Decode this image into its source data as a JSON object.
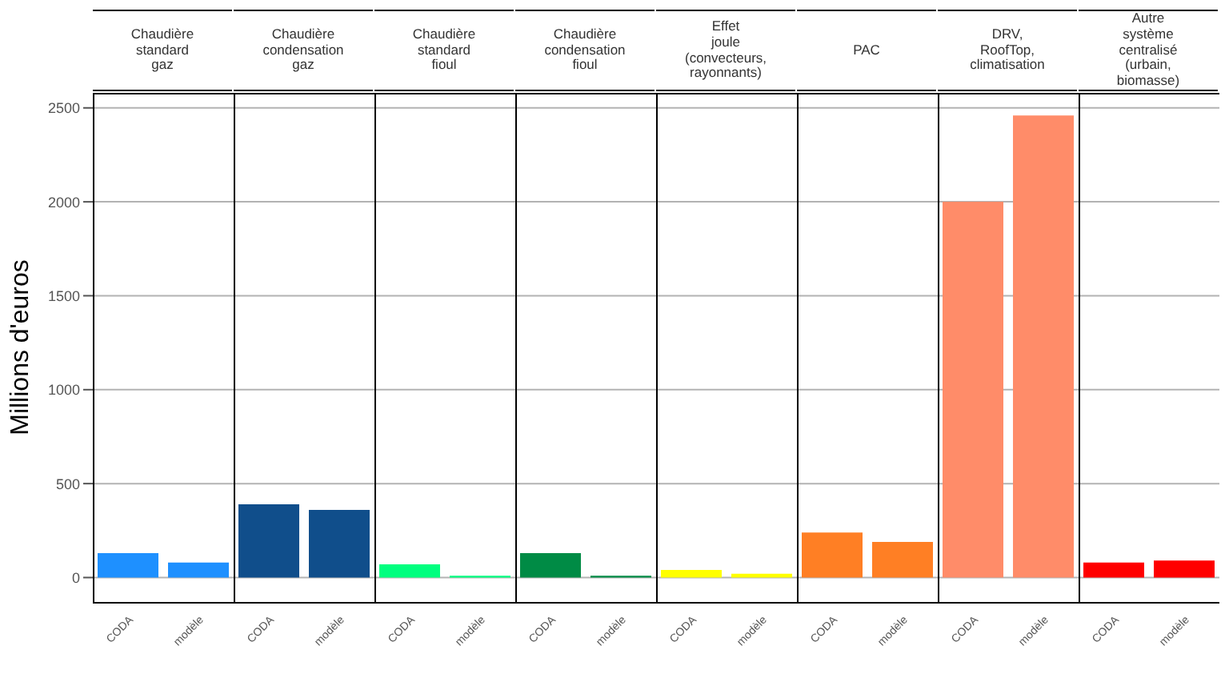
{
  "chart_data": [
    {
      "type": "bar",
      "title": "Chaudière\nstandard\ngaz",
      "ylabel": "Millions d'euros",
      "categories": [
        "CODA",
        "modèle"
      ],
      "values": [
        130,
        80
      ],
      "colors": [
        "#1e90ff",
        "#1e90ff"
      ],
      "ylim": [
        -130,
        2580
      ],
      "yticks": [
        0,
        500,
        1000,
        1500,
        2000,
        2500
      ],
      "grid": "y",
      "legend": false
    },
    {
      "type": "bar",
      "title": "Chaudière\ncondensation\ngaz",
      "categories": [
        "CODA",
        "modèle"
      ],
      "values": [
        390,
        360
      ],
      "colors": [
        "#104e8b",
        "#104e8b"
      ],
      "ylim": [
        -130,
        2580
      ],
      "yticks": [
        0,
        500,
        1000,
        1500,
        2000,
        2500
      ],
      "grid": "y",
      "legend": false,
      "tick_labels": "x"
    },
    {
      "type": "bar",
      "title": "Chaudière\nstandard\nfioul",
      "categories": [
        "CODA",
        "modèle"
      ],
      "values": [
        70,
        10
      ],
      "colors": [
        "#00ff7f",
        "#00ff7f"
      ],
      "ylim": [
        -130,
        2580
      ],
      "yticks": [
        0,
        500,
        1000,
        1500,
        2000,
        2500
      ],
      "grid": "y",
      "legend": false,
      "tick_labels": "x"
    },
    {
      "type": "bar",
      "title": "Chaudière\ncondensation\nfioul",
      "categories": [
        "CODA",
        "modèle"
      ],
      "values": [
        130,
        10
      ],
      "colors": [
        "#008b45",
        "#008b45"
      ],
      "ylim": [
        -130,
        2580
      ],
      "yticks": [
        0,
        500,
        1000,
        1500,
        2000,
        2500
      ],
      "grid": "y",
      "legend": false,
      "tick_labels": "x"
    },
    {
      "type": "bar",
      "title": "Effet\njoule\n(convecteurs,\nrayonnants)",
      "categories": [
        "CODA",
        "modèle"
      ],
      "values": [
        40,
        20
      ],
      "colors": [
        "#ffff00",
        "#ffff00"
      ],
      "ylim": [
        -130,
        2580
      ],
      "yticks": [
        0,
        500,
        1000,
        1500,
        2000,
        2500
      ],
      "grid": "y",
      "legend": false,
      "tick_labels": "x"
    },
    {
      "type": "bar",
      "title": "PAC",
      "categories": [
        "CODA",
        "modèle"
      ],
      "values": [
        240,
        190
      ],
      "colors": [
        "#ff7f24",
        "#ff7f24"
      ],
      "ylim": [
        -130,
        2580
      ],
      "yticks": [
        0,
        500,
        1000,
        1500,
        2000,
        2500
      ],
      "grid": "y",
      "legend": false,
      "tick_labels": "x"
    },
    {
      "type": "bar",
      "title": "DRV,\nRoofTop,\nclimatisation",
      "categories": [
        "CODA",
        "modèle"
      ],
      "values": [
        2000,
        2460
      ],
      "colors": [
        "#ff8c69",
        "#ff8c69"
      ],
      "ylim": [
        -130,
        2580
      ],
      "yticks": [
        0,
        500,
        1000,
        1500,
        2000,
        2500
      ],
      "grid": "y",
      "legend": false,
      "tick_labels": "x"
    },
    {
      "type": "bar",
      "title": "Autre\nsystème\ncentralisé\n(urbain,\nbiomasse)",
      "categories": [
        "CODA",
        "modèle"
      ],
      "values": [
        80,
        90
      ],
      "colors": [
        "#ff0000",
        "#ff0000"
      ],
      "ylim": [
        -130,
        2580
      ],
      "yticks": [
        0,
        500,
        1000,
        1500,
        2000,
        2500
      ],
      "grid": "y",
      "legend": false,
      "tick_labels": "x"
    }
  ]
}
